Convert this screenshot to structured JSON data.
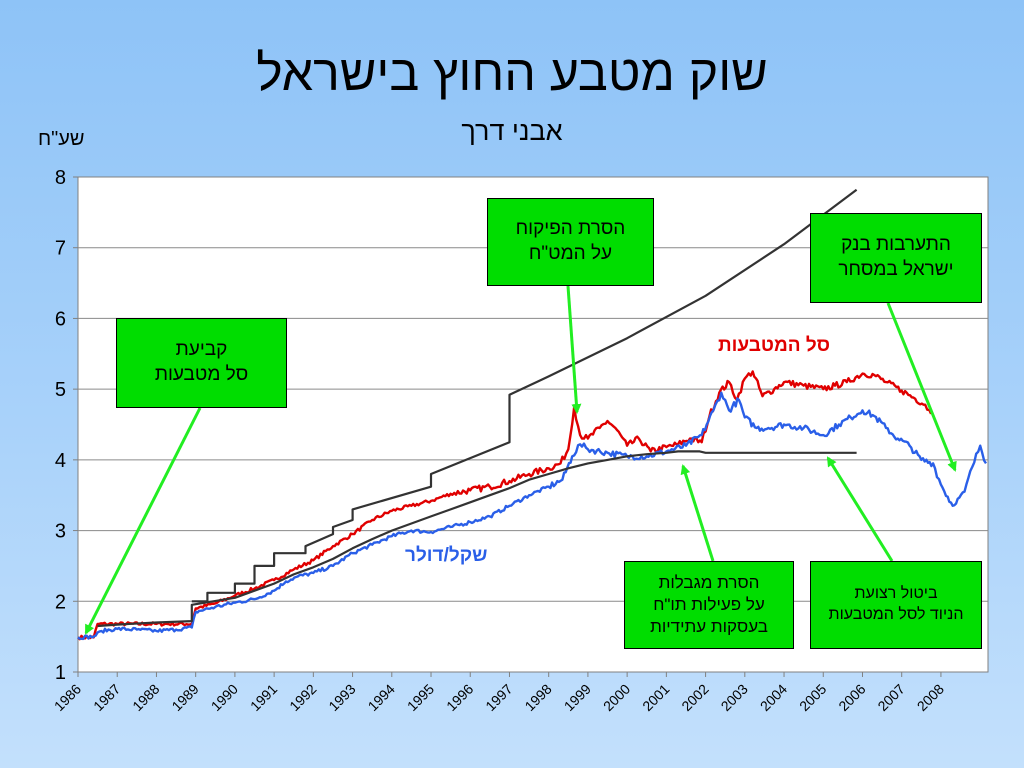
{
  "title": "שוק מטבע החוץ בישראל",
  "subtitle": "אבני דרך",
  "chart_data": {
    "type": "line",
    "ylabel": "שע\"ח",
    "xlabel": "",
    "ylim": [
      1,
      8
    ],
    "xlim": [
      1986,
      2009.2
    ],
    "yticks": [
      "1",
      "2",
      "3",
      "4",
      "5",
      "6",
      "7",
      "8"
    ],
    "xticks": [
      "1986",
      "1987",
      "1988",
      "1989",
      "1990",
      "1991",
      "1992",
      "1993",
      "1994",
      "1995",
      "1996",
      "1997",
      "1998",
      "1999",
      "2000",
      "2001",
      "2002",
      "2003",
      "2004",
      "2005",
      "2006",
      "2007",
      "2008"
    ],
    "grid": true,
    "series": [
      {
        "name": "סל המטבעות",
        "color": "#e00000",
        "points": [
          [
            1986.0,
            1.49
          ],
          [
            1986.4,
            1.49
          ],
          [
            1986.5,
            1.68
          ],
          [
            1987.0,
            1.68
          ],
          [
            1988.0,
            1.68
          ],
          [
            1988.9,
            1.68
          ],
          [
            1989.0,
            1.9
          ],
          [
            1989.5,
            1.97
          ],
          [
            1990.0,
            2.08
          ],
          [
            1990.5,
            2.18
          ],
          [
            1991.0,
            2.3
          ],
          [
            1991.5,
            2.45
          ],
          [
            1992.0,
            2.58
          ],
          [
            1992.5,
            2.78
          ],
          [
            1993.0,
            2.95
          ],
          [
            1993.5,
            3.15
          ],
          [
            1994.0,
            3.28
          ],
          [
            1994.5,
            3.35
          ],
          [
            1995.0,
            3.42
          ],
          [
            1995.5,
            3.52
          ],
          [
            1996.0,
            3.57
          ],
          [
            1996.5,
            3.62
          ],
          [
            1997.0,
            3.7
          ],
          [
            1997.5,
            3.8
          ],
          [
            1998.0,
            3.88
          ],
          [
            1998.3,
            3.95
          ],
          [
            1998.5,
            4.15
          ],
          [
            1998.65,
            4.75
          ],
          [
            1998.8,
            4.35
          ],
          [
            1999.0,
            4.3
          ],
          [
            1999.3,
            4.45
          ],
          [
            1999.5,
            4.55
          ],
          [
            1999.7,
            4.45
          ],
          [
            2000.0,
            4.2
          ],
          [
            2000.3,
            4.3
          ],
          [
            2000.6,
            4.12
          ],
          [
            2001.0,
            4.18
          ],
          [
            2001.3,
            4.22
          ],
          [
            2001.6,
            4.3
          ],
          [
            2001.9,
            4.25
          ],
          [
            2002.1,
            4.62
          ],
          [
            2002.35,
            4.95
          ],
          [
            2002.6,
            5.1
          ],
          [
            2002.8,
            4.85
          ],
          [
            2003.0,
            5.15
          ],
          [
            2003.2,
            5.25
          ],
          [
            2003.45,
            4.9
          ],
          [
            2003.75,
            5.0
          ],
          [
            2004.0,
            5.1
          ],
          [
            2004.5,
            5.05
          ],
          [
            2005.0,
            5.0
          ],
          [
            2005.3,
            5.05
          ],
          [
            2005.6,
            5.1
          ],
          [
            2006.0,
            5.22
          ],
          [
            2006.3,
            5.2
          ],
          [
            2006.6,
            5.1
          ],
          [
            2007.0,
            4.98
          ],
          [
            2007.3,
            4.88
          ],
          [
            2007.6,
            4.78
          ],
          [
            2007.75,
            4.65
          ]
        ]
      },
      {
        "name": "שקל/דולר",
        "color": "#2a5fe8",
        "points": [
          [
            1986.0,
            1.49
          ],
          [
            1986.4,
            1.5
          ],
          [
            1986.6,
            1.58
          ],
          [
            1987.0,
            1.61
          ],
          [
            1987.5,
            1.6
          ],
          [
            1988.0,
            1.58
          ],
          [
            1988.5,
            1.6
          ],
          [
            1988.9,
            1.63
          ],
          [
            1989.0,
            1.85
          ],
          [
            1989.5,
            1.92
          ],
          [
            1990.0,
            1.98
          ],
          [
            1990.5,
            2.03
          ],
          [
            1991.0,
            2.15
          ],
          [
            1991.3,
            2.28
          ],
          [
            1991.6,
            2.35
          ],
          [
            1992.0,
            2.4
          ],
          [
            1992.5,
            2.5
          ],
          [
            1993.0,
            2.68
          ],
          [
            1993.5,
            2.8
          ],
          [
            1994.0,
            2.92
          ],
          [
            1994.5,
            3.0
          ],
          [
            1995.0,
            2.98
          ],
          [
            1995.5,
            3.05
          ],
          [
            1996.0,
            3.12
          ],
          [
            1996.5,
            3.2
          ],
          [
            1997.0,
            3.35
          ],
          [
            1997.5,
            3.5
          ],
          [
            1998.0,
            3.62
          ],
          [
            1998.35,
            3.72
          ],
          [
            1998.6,
            4.05
          ],
          [
            1998.8,
            4.22
          ],
          [
            1999.0,
            4.15
          ],
          [
            1999.5,
            4.1
          ],
          [
            2000.0,
            4.05
          ],
          [
            2000.5,
            4.05
          ],
          [
            2001.0,
            4.12
          ],
          [
            2001.5,
            4.2
          ],
          [
            2001.9,
            4.35
          ],
          [
            2002.2,
            4.7
          ],
          [
            2002.4,
            4.95
          ],
          [
            2002.6,
            4.7
          ],
          [
            2002.85,
            4.85
          ],
          [
            2003.0,
            4.6
          ],
          [
            2003.3,
            4.45
          ],
          [
            2003.6,
            4.45
          ],
          [
            2004.0,
            4.5
          ],
          [
            2004.5,
            4.45
          ],
          [
            2005.0,
            4.35
          ],
          [
            2005.4,
            4.5
          ],
          [
            2005.7,
            4.6
          ],
          [
            2006.0,
            4.7
          ],
          [
            2006.3,
            4.62
          ],
          [
            2006.6,
            4.45
          ],
          [
            2006.9,
            4.3
          ],
          [
            2007.2,
            4.2
          ],
          [
            2007.5,
            4.0
          ],
          [
            2007.8,
            3.95
          ],
          [
            2008.0,
            3.65
          ],
          [
            2008.3,
            3.35
          ],
          [
            2008.6,
            3.55
          ],
          [
            2008.8,
            3.9
          ],
          [
            2009.0,
            4.2
          ],
          [
            2009.15,
            3.95
          ]
        ]
      },
      {
        "name": "",
        "color": "#333333",
        "points": [
          [
            1986.5,
            1.65
          ],
          [
            1987.0,
            1.67
          ],
          [
            1988.0,
            1.7
          ],
          [
            1988.9,
            1.72
          ],
          [
            1988.9,
            1.95
          ],
          [
            1990.0,
            2.05
          ],
          [
            1990.5,
            2.15
          ],
          [
            1991.0,
            2.25
          ],
          [
            1991.5,
            2.38
          ],
          [
            1992.0,
            2.48
          ],
          [
            1992.5,
            2.6
          ],
          [
            1993.0,
            2.75
          ],
          [
            1993.5,
            2.88
          ],
          [
            1994.0,
            3.0
          ],
          [
            1994.5,
            3.1
          ],
          [
            1995.0,
            3.2
          ],
          [
            1995.5,
            3.3
          ],
          [
            1996.0,
            3.4
          ],
          [
            1996.5,
            3.5
          ],
          [
            1997.0,
            3.6
          ],
          [
            1997.5,
            3.72
          ],
          [
            1998.0,
            3.8
          ],
          [
            1998.5,
            3.88
          ],
          [
            1999.0,
            3.95
          ],
          [
            1999.5,
            4.0
          ],
          [
            2000.0,
            4.05
          ],
          [
            2000.5,
            4.08
          ],
          [
            2001.0,
            4.1
          ],
          [
            2001.3,
            4.12
          ],
          [
            2001.85,
            4.12
          ],
          [
            2002.0,
            4.1
          ],
          [
            2005.85,
            4.1
          ]
        ]
      },
      {
        "name": "",
        "color": "#333333",
        "points": [
          [
            1988.9,
            2.0
          ],
          [
            1989.3,
            2.0
          ],
          [
            1989.3,
            2.12
          ],
          [
            1990.0,
            2.12
          ],
          [
            1990.0,
            2.25
          ],
          [
            1990.5,
            2.25
          ],
          [
            1990.5,
            2.5
          ],
          [
            1991.0,
            2.5
          ],
          [
            1991.0,
            2.68
          ],
          [
            1991.8,
            2.68
          ],
          [
            1991.8,
            2.78
          ],
          [
            1992.5,
            2.95
          ],
          [
            1992.5,
            3.05
          ],
          [
            1993.0,
            3.15
          ],
          [
            1993.0,
            3.3
          ],
          [
            1995.0,
            3.62
          ],
          [
            1995.0,
            3.8
          ],
          [
            1997.0,
            4.25
          ],
          [
            1997.0,
            4.92
          ],
          [
            1998.0,
            5.18
          ],
          [
            2000.0,
            5.72
          ],
          [
            2002.0,
            6.32
          ],
          [
            2004.0,
            7.05
          ],
          [
            2005.85,
            7.82
          ]
        ]
      }
    ]
  },
  "labels": {
    "basket": "סל המטבעות",
    "usd": "שקל/דולר"
  },
  "callouts": {
    "basket_fix": {
      "line1": "קביעת",
      "line2": "סל מטבעות"
    },
    "remove_control": {
      "line1": "הסרת הפיקוח",
      "line2": "על המט\"ח"
    },
    "boi_intervention": {
      "line1": "התערבות בנק",
      "line2": "ישראל במסחר"
    },
    "remove_limits": {
      "line1": "הסרת מגבלות",
      "line2": "על פעילות תו\"ח",
      "line3": "בעסקות עתידיות"
    },
    "cancel_band": {
      "line1": "ביטול רצועת",
      "line2": "הניוד לסל המטבעות"
    }
  }
}
